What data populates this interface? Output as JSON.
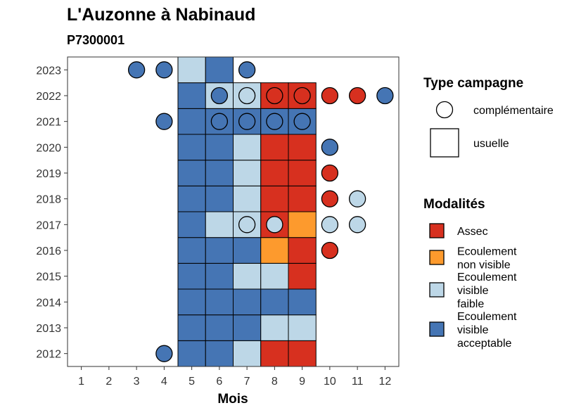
{
  "chart_data": {
    "type": "heatmap",
    "title": "L'Auzonne à Nabinaud",
    "subtitle": "P7300001",
    "xlabel": "Mois",
    "ylabel": "",
    "x_ticks": [
      1,
      2,
      3,
      4,
      5,
      6,
      7,
      8,
      9,
      10,
      11,
      12
    ],
    "y_ticks": [
      2012,
      2013,
      2014,
      2015,
      2016,
      2017,
      2018,
      2019,
      2020,
      2021,
      2022,
      2023
    ],
    "xlim": [
      0.5,
      12.5
    ],
    "ylim": [
      2011.5,
      2023.5
    ],
    "grid": false,
    "legend_position": "right",
    "colors": {
      "Assec": "#d7301f",
      "Ecoulement non visible": "#fd9a2d",
      "Ecoulement visible faible": "#bdd7e7",
      "Ecoulement visible acceptable": "#4575b4"
    },
    "shapes": {
      "complémentaire": "circle",
      "usuelle": "square"
    },
    "legends": {
      "type_campagne": {
        "title": "Type campagne",
        "items": [
          {
            "label": "complémentaire",
            "shape": "circle"
          },
          {
            "label": "usuelle",
            "shape": "square"
          }
        ]
      },
      "modalites": {
        "title": "Modalités",
        "items": [
          {
            "key": "Assec",
            "lines": [
              "Assec"
            ]
          },
          {
            "key": "Ecoulement non visible",
            "lines": [
              "Ecoulement",
              "non visible"
            ]
          },
          {
            "key": "Ecoulement visible faible",
            "lines": [
              "Ecoulement",
              "visible",
              "faible"
            ]
          },
          {
            "key": "Ecoulement visible acceptable",
            "lines": [
              "Ecoulement",
              "visible",
              "acceptable"
            ]
          }
        ]
      }
    },
    "usuelle": [
      {
        "year": 2012,
        "month": 5,
        "modalite": "Ecoulement visible acceptable"
      },
      {
        "year": 2012,
        "month": 6,
        "modalite": "Ecoulement visible acceptable"
      },
      {
        "year": 2012,
        "month": 7,
        "modalite": "Ecoulement visible faible"
      },
      {
        "year": 2012,
        "month": 8,
        "modalite": "Assec"
      },
      {
        "year": 2012,
        "month": 9,
        "modalite": "Assec"
      },
      {
        "year": 2013,
        "month": 5,
        "modalite": "Ecoulement visible acceptable"
      },
      {
        "year": 2013,
        "month": 6,
        "modalite": "Ecoulement visible acceptable"
      },
      {
        "year": 2013,
        "month": 7,
        "modalite": "Ecoulement visible acceptable"
      },
      {
        "year": 2013,
        "month": 8,
        "modalite": "Ecoulement visible faible"
      },
      {
        "year": 2013,
        "month": 9,
        "modalite": "Ecoulement visible faible"
      },
      {
        "year": 2014,
        "month": 5,
        "modalite": "Ecoulement visible acceptable"
      },
      {
        "year": 2014,
        "month": 6,
        "modalite": "Ecoulement visible acceptable"
      },
      {
        "year": 2014,
        "month": 7,
        "modalite": "Ecoulement visible acceptable"
      },
      {
        "year": 2014,
        "month": 8,
        "modalite": "Ecoulement visible acceptable"
      },
      {
        "year": 2014,
        "month": 9,
        "modalite": "Ecoulement visible acceptable"
      },
      {
        "year": 2015,
        "month": 5,
        "modalite": "Ecoulement visible acceptable"
      },
      {
        "year": 2015,
        "month": 6,
        "modalite": "Ecoulement visible acceptable"
      },
      {
        "year": 2015,
        "month": 7,
        "modalite": "Ecoulement visible faible"
      },
      {
        "year": 2015,
        "month": 8,
        "modalite": "Ecoulement visible faible"
      },
      {
        "year": 2015,
        "month": 9,
        "modalite": "Assec"
      },
      {
        "year": 2016,
        "month": 5,
        "modalite": "Ecoulement visible acceptable"
      },
      {
        "year": 2016,
        "month": 6,
        "modalite": "Ecoulement visible acceptable"
      },
      {
        "year": 2016,
        "month": 7,
        "modalite": "Ecoulement visible acceptable"
      },
      {
        "year": 2016,
        "month": 8,
        "modalite": "Ecoulement non visible"
      },
      {
        "year": 2016,
        "month": 9,
        "modalite": "Assec"
      },
      {
        "year": 2017,
        "month": 5,
        "modalite": "Ecoulement visible acceptable"
      },
      {
        "year": 2017,
        "month": 6,
        "modalite": "Ecoulement visible faible"
      },
      {
        "year": 2017,
        "month": 7,
        "modalite": "Ecoulement visible faible"
      },
      {
        "year": 2017,
        "month": 8,
        "modalite": "Assec"
      },
      {
        "year": 2017,
        "month": 9,
        "modalite": "Ecoulement non visible"
      },
      {
        "year": 2018,
        "month": 5,
        "modalite": "Ecoulement visible acceptable"
      },
      {
        "year": 2018,
        "month": 6,
        "modalite": "Ecoulement visible acceptable"
      },
      {
        "year": 2018,
        "month": 7,
        "modalite": "Ecoulement visible faible"
      },
      {
        "year": 2018,
        "month": 8,
        "modalite": "Assec"
      },
      {
        "year": 2018,
        "month": 9,
        "modalite": "Assec"
      },
      {
        "year": 2019,
        "month": 5,
        "modalite": "Ecoulement visible acceptable"
      },
      {
        "year": 2019,
        "month": 6,
        "modalite": "Ecoulement visible acceptable"
      },
      {
        "year": 2019,
        "month": 7,
        "modalite": "Ecoulement visible faible"
      },
      {
        "year": 2019,
        "month": 8,
        "modalite": "Assec"
      },
      {
        "year": 2019,
        "month": 9,
        "modalite": "Assec"
      },
      {
        "year": 2020,
        "month": 5,
        "modalite": "Ecoulement visible acceptable"
      },
      {
        "year": 2020,
        "month": 6,
        "modalite": "Ecoulement visible acceptable"
      },
      {
        "year": 2020,
        "month": 7,
        "modalite": "Ecoulement visible faible"
      },
      {
        "year": 2020,
        "month": 8,
        "modalite": "Assec"
      },
      {
        "year": 2020,
        "month": 9,
        "modalite": "Assec"
      },
      {
        "year": 2021,
        "month": 5,
        "modalite": "Ecoulement visible acceptable"
      },
      {
        "year": 2021,
        "month": 6,
        "modalite": "Ecoulement visible acceptable"
      },
      {
        "year": 2021,
        "month": 7,
        "modalite": "Ecoulement visible acceptable"
      },
      {
        "year": 2021,
        "month": 8,
        "modalite": "Ecoulement visible acceptable"
      },
      {
        "year": 2021,
        "month": 9,
        "modalite": "Ecoulement visible acceptable"
      },
      {
        "year": 2022,
        "month": 5,
        "modalite": "Ecoulement visible acceptable"
      },
      {
        "year": 2022,
        "month": 6,
        "modalite": "Ecoulement visible faible"
      },
      {
        "year": 2022,
        "month": 7,
        "modalite": "Ecoulement visible faible"
      },
      {
        "year": 2022,
        "month": 8,
        "modalite": "Assec"
      },
      {
        "year": 2022,
        "month": 9,
        "modalite": "Assec"
      },
      {
        "year": 2023,
        "month": 5,
        "modalite": "Ecoulement visible faible"
      },
      {
        "year": 2023,
        "month": 6,
        "modalite": "Ecoulement visible acceptable"
      }
    ],
    "complementaire": [
      {
        "year": 2023,
        "month": 3,
        "modalite": "Ecoulement visible acceptable"
      },
      {
        "year": 2023,
        "month": 4,
        "modalite": "Ecoulement visible acceptable"
      },
      {
        "year": 2023,
        "month": 7,
        "modalite": "Ecoulement visible acceptable"
      },
      {
        "year": 2022,
        "month": 6,
        "modalite": "Ecoulement visible acceptable"
      },
      {
        "year": 2022,
        "month": 7,
        "modalite": "Ecoulement visible faible"
      },
      {
        "year": 2022,
        "month": 8,
        "modalite": "Assec"
      },
      {
        "year": 2022,
        "month": 9,
        "modalite": "Assec"
      },
      {
        "year": 2022,
        "month": 10,
        "modalite": "Assec"
      },
      {
        "year": 2022,
        "month": 11,
        "modalite": "Assec"
      },
      {
        "year": 2022,
        "month": 12,
        "modalite": "Ecoulement visible acceptable"
      },
      {
        "year": 2021,
        "month": 4,
        "modalite": "Ecoulement visible acceptable"
      },
      {
        "year": 2021,
        "month": 6,
        "modalite": "Ecoulement visible acceptable"
      },
      {
        "year": 2021,
        "month": 7,
        "modalite": "Ecoulement visible acceptable"
      },
      {
        "year": 2021,
        "month": 8,
        "modalite": "Ecoulement visible acceptable"
      },
      {
        "year": 2021,
        "month": 9,
        "modalite": "Ecoulement visible acceptable"
      },
      {
        "year": 2020,
        "month": 10,
        "modalite": "Ecoulement visible acceptable"
      },
      {
        "year": 2019,
        "month": 10,
        "modalite": "Assec"
      },
      {
        "year": 2018,
        "month": 10,
        "modalite": "Assec"
      },
      {
        "year": 2018,
        "month": 11,
        "modalite": "Ecoulement visible faible"
      },
      {
        "year": 2017,
        "month": 7,
        "modalite": "Ecoulement visible faible"
      },
      {
        "year": 2017,
        "month": 8,
        "modalite": "Ecoulement visible faible"
      },
      {
        "year": 2017,
        "month": 10,
        "modalite": "Ecoulement visible faible"
      },
      {
        "year": 2017,
        "month": 11,
        "modalite": "Ecoulement visible faible"
      },
      {
        "year": 2016,
        "month": 10,
        "modalite": "Assec"
      },
      {
        "year": 2012,
        "month": 4,
        "modalite": "Ecoulement visible acceptable"
      }
    ]
  }
}
